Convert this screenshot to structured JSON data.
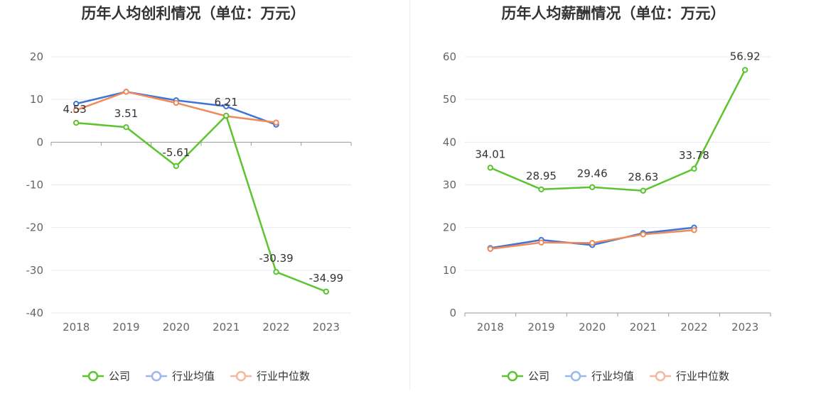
{
  "colors": {
    "company": "#5cc42e",
    "industry_avg": "#3c74d8",
    "industry_median": "#ef8a59",
    "legend_avg": "#9db9ea",
    "legend_median": "#f5b99d",
    "grid": "#e6e9f2",
    "axis": "#999999"
  },
  "chart_data": [
    {
      "type": "line",
      "title": "历年人均创利情况（单位：万元）",
      "categories": [
        "2018",
        "2019",
        "2020",
        "2021",
        "2022",
        "2023"
      ],
      "yticks": [
        20,
        10,
        0,
        -10,
        -20,
        -30,
        -40
      ],
      "ylim": [
        -40,
        20
      ],
      "grid": true,
      "legend_position": "bottom-center",
      "series": [
        {
          "name": "公司",
          "values": [
            4.53,
            3.51,
            -5.61,
            6.21,
            -30.39,
            -34.99
          ],
          "labels": [
            "4.53",
            "3.51",
            "-5.61",
            "6.21",
            "-30.39",
            "-34.99"
          ]
        },
        {
          "name": "行业均值",
          "values": [
            9.0,
            11.8,
            9.8,
            8.4,
            4.1,
            null
          ]
        },
        {
          "name": "行业中位数",
          "values": [
            7.5,
            11.8,
            9.2,
            6.1,
            4.6,
            null
          ]
        }
      ]
    },
    {
      "type": "line",
      "title": "历年人均薪酬情况（单位：万元）",
      "categories": [
        "2018",
        "2019",
        "2020",
        "2021",
        "2022",
        "2023"
      ],
      "yticks": [
        60,
        50,
        40,
        30,
        20,
        10,
        0
      ],
      "ylim": [
        0,
        60
      ],
      "grid": true,
      "legend_position": "bottom-center",
      "series": [
        {
          "name": "公司",
          "values": [
            34.01,
            28.95,
            29.46,
            28.63,
            33.78,
            56.92
          ],
          "labels": [
            "34.01",
            "28.95",
            "29.46",
            "28.63",
            "33.78",
            "56.92"
          ]
        },
        {
          "name": "行业均值",
          "values": [
            15.2,
            17.1,
            15.9,
            18.7,
            20.0,
            null
          ]
        },
        {
          "name": "行业中位数",
          "values": [
            15.0,
            16.5,
            16.4,
            18.4,
            19.4,
            null
          ]
        }
      ]
    }
  ]
}
